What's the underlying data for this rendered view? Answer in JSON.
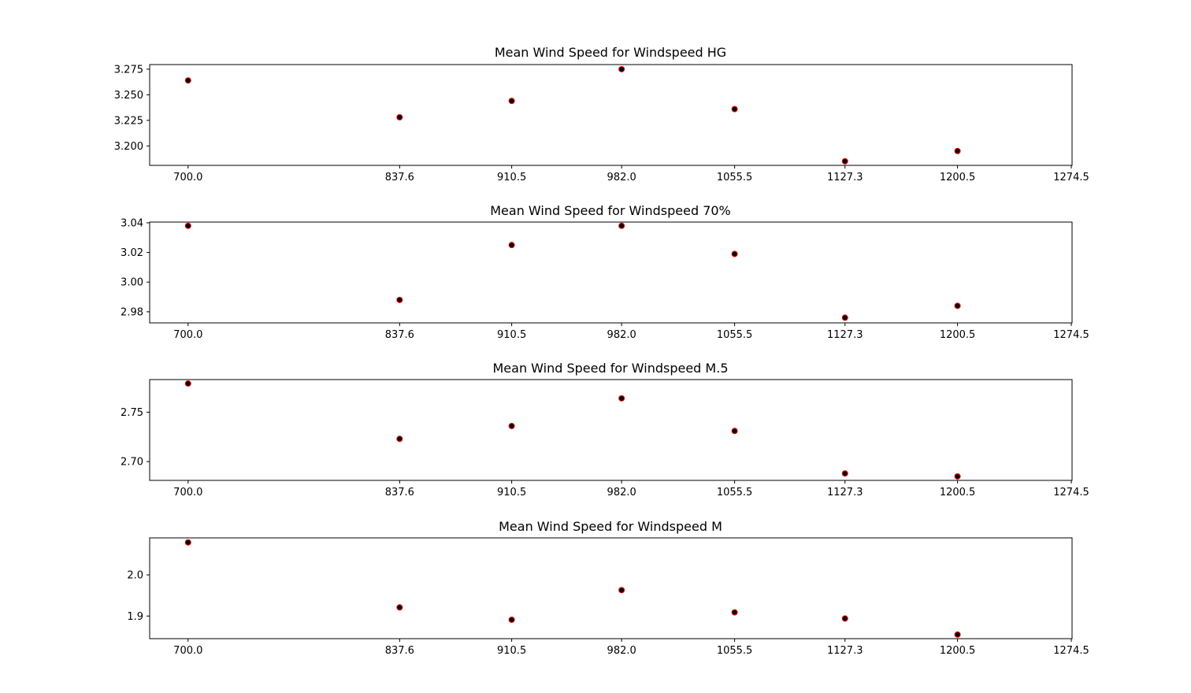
{
  "chart_data": [
    {
      "type": "scatter",
      "title": "Mean Wind Speed for Windspeed HG",
      "xlabel": "",
      "ylabel": "",
      "xticks": [
        "700.0",
        "837.6",
        "910.5",
        "982.0",
        "1055.5",
        "1127.3",
        "1200.5",
        "1274.5"
      ],
      "yticks": [
        "3.200",
        "3.225",
        "3.250",
        "3.275"
      ],
      "xlim": [
        675,
        1275
      ],
      "ylim": [
        3.181,
        3.2795
      ],
      "x": [
        700.0,
        837.6,
        910.5,
        982.0,
        1055.5,
        1127.3,
        1200.5
      ],
      "y": [
        3.264,
        3.228,
        3.244,
        3.275,
        3.236,
        3.185,
        3.195
      ],
      "grid": false,
      "marker_face_color": "#000000",
      "marker_edge_color": "#ff0000"
    },
    {
      "type": "scatter",
      "title": "Mean Wind Speed for Windspeed 70%",
      "xlabel": "",
      "ylabel": "",
      "xticks": [
        "700.0",
        "837.6",
        "910.5",
        "982.0",
        "1055.5",
        "1127.3",
        "1200.5",
        "1274.5"
      ],
      "yticks": [
        "2.98",
        "3.00",
        "3.02",
        "3.04"
      ],
      "xlim": [
        675,
        1275
      ],
      "ylim": [
        2.9725,
        3.0405
      ],
      "x": [
        700.0,
        837.6,
        910.5,
        982.0,
        1055.5,
        1127.3,
        1200.5
      ],
      "y": [
        3.038,
        2.988,
        3.025,
        3.038,
        3.019,
        2.976,
        2.984
      ],
      "grid": false,
      "marker_face_color": "#000000",
      "marker_edge_color": "#ff0000"
    },
    {
      "type": "scatter",
      "title": "Mean Wind Speed for Windspeed M.5",
      "xlabel": "",
      "ylabel": "",
      "xticks": [
        "700.0",
        "837.6",
        "910.5",
        "982.0",
        "1055.5",
        "1127.3",
        "1200.5",
        "1274.5"
      ],
      "yticks": [
        "2.70",
        "2.75"
      ],
      "xlim": [
        675,
        1275
      ],
      "ylim": [
        2.681,
        2.783
      ],
      "x": [
        700.0,
        837.6,
        910.5,
        982.0,
        1055.5,
        1127.3,
        1200.5
      ],
      "y": [
        2.779,
        2.723,
        2.736,
        2.764,
        2.731,
        2.688,
        2.685
      ],
      "grid": false,
      "marker_face_color": "#000000",
      "marker_edge_color": "#ff0000"
    },
    {
      "type": "scatter",
      "title": "Mean Wind Speed for Windspeed M",
      "xlabel": "",
      "ylabel": "",
      "xticks": [
        "700.0",
        "837.6",
        "910.5",
        "982.0",
        "1055.5",
        "1127.3",
        "1200.5",
        "1274.5"
      ],
      "yticks": [
        "1.9",
        "2.0"
      ],
      "xlim": [
        675,
        1275
      ],
      "ylim": [
        1.845,
        2.09
      ],
      "x": [
        700.0,
        837.6,
        910.5,
        982.0,
        1055.5,
        1127.3,
        1200.5
      ],
      "y": [
        2.079,
        1.921,
        1.891,
        1.963,
        1.909,
        1.894,
        1.855
      ],
      "grid": false,
      "marker_face_color": "#000000",
      "marker_edge_color": "#ff0000"
    }
  ]
}
